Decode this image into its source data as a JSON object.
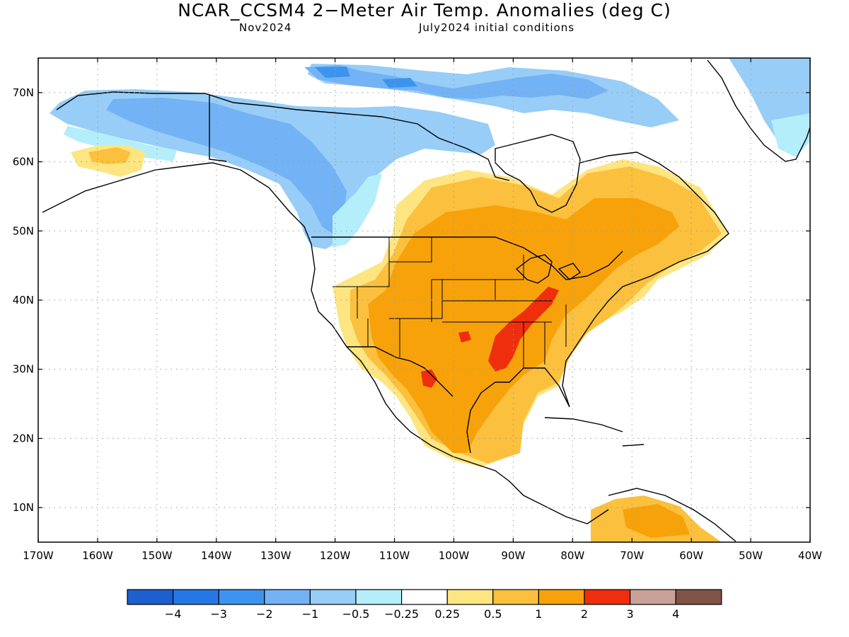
{
  "header": {
    "title": "NCAR_CCSM4 2−Meter Air Temp. Anomalies (deg C)",
    "valid_month": "Nov2024",
    "initial_conditions": "July2024 initial conditions"
  },
  "map": {
    "lon_range": [
      -170,
      -40
    ],
    "lat_range": [
      5,
      75
    ],
    "lon_ticks": [
      "170W",
      "160W",
      "150W",
      "140W",
      "130W",
      "120W",
      "110W",
      "100W",
      "90W",
      "80W",
      "70W",
      "60W",
      "50W",
      "40W"
    ],
    "lon_tick_values": [
      -170,
      -160,
      -150,
      -140,
      -130,
      -120,
      -110,
      -100,
      -90,
      -80,
      -70,
      -60,
      -50,
      -40
    ],
    "lat_ticks": [
      "10N",
      "20N",
      "30N",
      "40N",
      "50N",
      "60N",
      "70N"
    ],
    "lat_tick_values": [
      10,
      20,
      30,
      40,
      50,
      60,
      70
    ],
    "grid": "dotted",
    "land_color": "#ffffff"
  },
  "colorbar": {
    "colors": [
      "#1c5fcf",
      "#2677e6",
      "#3d94ef",
      "#73b2f4",
      "#97cdf7",
      "#b4eefa",
      "#ffffff",
      "#fde581",
      "#fbc03d",
      "#f7a20b",
      "#ef2e0e",
      "#c8a298",
      "#7f5446"
    ],
    "labels": [
      "−4",
      "−3",
      "−2",
      "−1",
      "−0.5",
      "−0.25",
      "0.25",
      "0.5",
      "1",
      "2",
      "3",
      "4"
    ]
  }
}
